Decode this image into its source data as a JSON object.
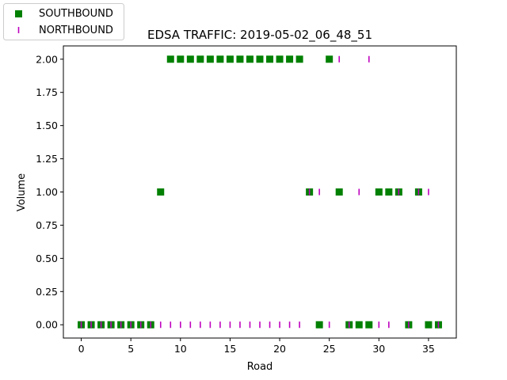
{
  "chart_data": {
    "type": "scatter",
    "title": "EDSA TRAFFIC: 2019-05-02_06_48_51",
    "xlabel": "Road",
    "ylabel": "Volume",
    "xlim": [
      -1.8,
      37.8
    ],
    "ylim": [
      -0.1,
      2.1
    ],
    "xticks": [
      0,
      5,
      10,
      15,
      20,
      25,
      30,
      35
    ],
    "yticks": [
      0.0,
      0.25,
      0.5,
      0.75,
      1.0,
      1.25,
      1.5,
      1.75,
      2.0
    ],
    "xtick_labels": [
      "0",
      "5",
      "10",
      "15",
      "20",
      "25",
      "30",
      "35"
    ],
    "ytick_labels": [
      "0.00",
      "0.25",
      "0.50",
      "0.75",
      "1.00",
      "1.25",
      "1.50",
      "1.75",
      "2.00"
    ],
    "grid": false,
    "legend_position": "upper-left, outside",
    "series": [
      {
        "name": "SOUTHBOUND",
        "marker": "square",
        "color": "#008000",
        "x": [
          0,
          1,
          2,
          3,
          4,
          5,
          6,
          7,
          8,
          9,
          10,
          11,
          12,
          13,
          14,
          15,
          16,
          17,
          18,
          19,
          20,
          21,
          22,
          23,
          24,
          25,
          26,
          27,
          28,
          29,
          30,
          31,
          32,
          33,
          34,
          35,
          36
        ],
        "y": [
          0,
          0,
          0,
          0,
          0,
          0,
          0,
          0,
          1,
          2,
          2,
          2,
          2,
          2,
          2,
          2,
          2,
          2,
          2,
          2,
          2,
          2,
          2,
          1,
          0,
          2,
          1,
          0,
          0,
          0,
          1,
          1,
          1,
          0,
          1,
          0,
          0
        ]
      },
      {
        "name": "NORTHBOUND",
        "marker": "vline",
        "color": "#bf00bf",
        "x": [
          0,
          1,
          2,
          3,
          4,
          5,
          6,
          7,
          8,
          9,
          10,
          11,
          12,
          13,
          14,
          15,
          16,
          17,
          18,
          19,
          20,
          21,
          22,
          23,
          24,
          25,
          26,
          27,
          28,
          29,
          30,
          31,
          32,
          33,
          34,
          35,
          36
        ],
        "y": [
          0,
          0,
          0,
          0,
          0,
          0,
          0,
          0,
          0,
          0,
          0,
          0,
          0,
          0,
          0,
          0,
          0,
          0,
          0,
          0,
          0,
          0,
          0,
          1,
          1,
          0,
          2,
          0,
          1,
          2,
          0,
          0,
          1,
          0,
          1,
          1,
          0
        ]
      }
    ]
  }
}
